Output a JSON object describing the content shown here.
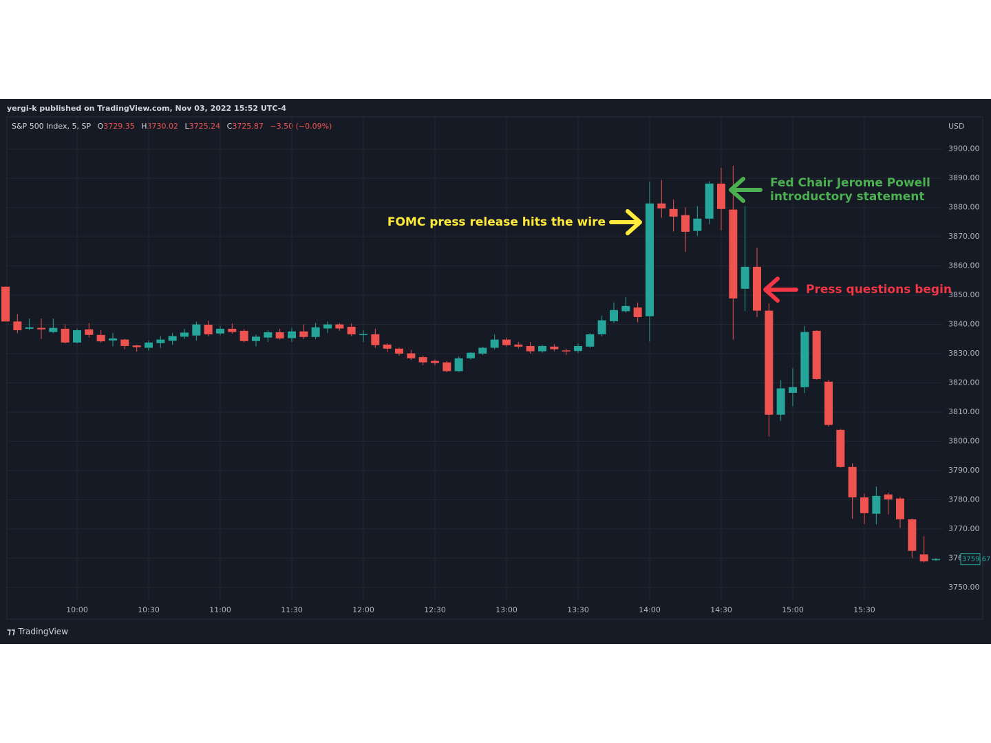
{
  "header": {
    "published": "yergi-k published on TradingView.com, Nov 03, 2022 15:52 UTC-4",
    "symbol": "S&P 500 Index, 5, SP",
    "ohlc": [
      {
        "label": "O",
        "value": "3729.35"
      },
      {
        "label": "H",
        "value": "3730.02"
      },
      {
        "label": "L",
        "value": "3725.24"
      },
      {
        "label": "C",
        "value": "3725.87"
      }
    ],
    "change": "−3.50 (−0.09%)",
    "currency": "USD",
    "brand": "TradingView"
  },
  "chart_data": {
    "type": "candlestick",
    "categories": [
      null,
      null,
      null,
      null,
      null,
      null,
      "10:00",
      null,
      null,
      null,
      null,
      null,
      "10:30",
      null,
      null,
      null,
      null,
      null,
      "11:00",
      null,
      null,
      null,
      null,
      null,
      "11:30",
      null,
      null,
      null,
      null,
      null,
      "12:00",
      null,
      null,
      null,
      null,
      null,
      "12:30",
      null,
      null,
      null,
      null,
      null,
      "13:00",
      null,
      null,
      null,
      null,
      null,
      "13:30",
      null,
      null,
      null,
      null,
      null,
      "14:00",
      null,
      null,
      null,
      null,
      null,
      "14:30",
      null,
      null,
      null,
      null,
      null,
      "15:00",
      null,
      null,
      null,
      null,
      null,
      "15:30",
      null,
      null,
      null,
      null,
      null,
      null
    ],
    "series": [
      {
        "name": "S&P 500 Index",
        "up_color": "#26a69a",
        "down_color": "#ef5350",
        "open": [
          3852.9,
          3841,
          3838.5,
          3838.8,
          3837.4,
          3838.5,
          3833.8,
          3838.3,
          3836.4,
          3834.5,
          3834.8,
          3832.8,
          3832,
          3833.6,
          3834.4,
          3835.8,
          3836.2,
          3839.9,
          3836.9,
          3838.5,
          3837.8,
          3834.3,
          3835.5,
          3837.3,
          3835.3,
          3837.6,
          3835.7,
          3838.6,
          3840,
          3839.2,
          3836.4,
          3836.6,
          3833.1,
          3831.7,
          3830.1,
          3828.8,
          3827.5,
          3827,
          3824,
          3828.4,
          3830,
          3832,
          3834.8,
          3833.1,
          3832.6,
          3830.8,
          3832.4,
          3831.1,
          3830.9,
          3832.4,
          3836.6,
          3841.1,
          3844.5,
          3845.8,
          3842.8,
          3881.4,
          3879.5,
          3877.4,
          3872,
          3876.2,
          3888.2,
          3879.3,
          3852.2,
          3859.7,
          3844.7,
          3809.1,
          3816.6,
          3818.5,
          3837.8,
          3820.4,
          3803.9,
          3791.2,
          3780.8,
          3775.2,
          3781.8,
          3780.4,
          3773.3,
          3761.3,
          3759.3
        ],
        "high": [
          3853,
          3843.5,
          3842,
          3842,
          3842,
          3840,
          3838.5,
          3840.5,
          3838,
          3837,
          3835,
          3833,
          3834.5,
          3836,
          3837,
          3838.5,
          3841,
          3841.3,
          3839.5,
          3840.3,
          3838.5,
          3836.5,
          3838,
          3838.5,
          3838.8,
          3840,
          3840.5,
          3841,
          3840.5,
          3840.3,
          3838,
          3838.5,
          3833.5,
          3832,
          3831.3,
          3829.3,
          3828,
          3827.5,
          3829,
          3830.5,
          3832.3,
          3836.5,
          3835.5,
          3834,
          3834,
          3833,
          3833.2,
          3831.7,
          3833.5,
          3837,
          3843,
          3847.5,
          3849.3,
          3847.5,
          3888.8,
          3889.4,
          3882.8,
          3880,
          3880.5,
          3889,
          3893.6,
          3894.3,
          3880.5,
          3866.3,
          3847.2,
          3820.9,
          3825,
          3839.5,
          3838,
          3821,
          3804.2,
          3792.5,
          3782,
          3784.5,
          3782.5,
          3781,
          3773.5,
          3767.5,
          3760
        ],
        "low": [
          3841,
          3837,
          3838,
          3835,
          3837,
          3833.5,
          3833.5,
          3835.5,
          3833.8,
          3832.5,
          3831.5,
          3830.7,
          3831,
          3832,
          3833,
          3835,
          3834.5,
          3836,
          3836.3,
          3836.8,
          3833.8,
          3832.5,
          3834,
          3834.8,
          3834,
          3835,
          3835,
          3837,
          3837.8,
          3836,
          3834,
          3832,
          3830.5,
          3829.3,
          3827.8,
          3826,
          3826,
          3823.6,
          3823.8,
          3828,
          3829.5,
          3831.5,
          3832.5,
          3831.8,
          3830,
          3830.3,
          3830.8,
          3829.5,
          3830.2,
          3832,
          3836,
          3840.5,
          3844,
          3840.7,
          3834.1,
          3876.5,
          3871.8,
          3864.8,
          3870.3,
          3874.3,
          3872.2,
          3834.8,
          3844.5,
          3842.5,
          3801.6,
          3807,
          3812,
          3816.5,
          3821,
          3805,
          3791,
          3773.5,
          3771.7,
          3771.6,
          3775,
          3770.3,
          3760,
          3758.5,
          3759
        ],
        "close": [
          3841,
          3838,
          3839,
          3838.3,
          3838.8,
          3833.8,
          3838,
          3836.4,
          3834.2,
          3835.2,
          3832.6,
          3832.2,
          3833.8,
          3834.8,
          3836,
          3837.2,
          3840,
          3836.6,
          3838.5,
          3837.4,
          3834.3,
          3835.8,
          3837.3,
          3835.2,
          3837.6,
          3835.7,
          3839,
          3840,
          3838.6,
          3836.6,
          3836.7,
          3832.9,
          3831.7,
          3830,
          3828.4,
          3827,
          3826.8,
          3824,
          3828.4,
          3830.3,
          3832,
          3834.8,
          3832.9,
          3832.4,
          3830.8,
          3832.6,
          3831.5,
          3830.9,
          3832.6,
          3836.6,
          3841.4,
          3844.9,
          3846.3,
          3842.5,
          3881.4,
          3879.7,
          3876.9,
          3871.7,
          3876.2,
          3888.2,
          3879.5,
          3848.9,
          3859.7,
          3844.7,
          3809.1,
          3818.1,
          3818.5,
          3837.4,
          3821.3,
          3805.6,
          3791.2,
          3780.8,
          3775.4,
          3781.3,
          3780.1,
          3773.3,
          3762.5,
          3758.9,
          3759.67
        ]
      }
    ],
    "ylim": [
      3745,
      3911
    ],
    "yticks": [
      {
        "value": 3750,
        "label": "3750.00"
      },
      {
        "value": 3760,
        "label": "3760.00"
      },
      {
        "value": 3770,
        "label": "3770.00"
      },
      {
        "value": 3780,
        "label": "3780.00"
      },
      {
        "value": 3790,
        "label": "3790.00"
      },
      {
        "value": 3800,
        "label": "3800.00"
      },
      {
        "value": 3810,
        "label": "3810.00"
      },
      {
        "value": 3820,
        "label": "3820.00"
      },
      {
        "value": 3830,
        "label": "3830.00"
      },
      {
        "value": 3840,
        "label": "3840.00"
      },
      {
        "value": 3850,
        "label": "3850.00"
      },
      {
        "value": 3860,
        "label": "3860.00"
      },
      {
        "value": 3870,
        "label": "3870.00"
      },
      {
        "value": 3880,
        "label": "3880.00"
      },
      {
        "value": 3890,
        "label": "3890.00"
      },
      {
        "value": 3900,
        "label": "3900.00"
      }
    ],
    "grid": true,
    "annotations": [
      {
        "text": [
          "FOMC press release hits the wire"
        ],
        "color": "#ffeb3b"
      },
      {
        "text": [
          "Fed Chair Jerome Powell",
          "introductory statement"
        ],
        "color": "#4caf50"
      },
      {
        "text": [
          "Press questions begin"
        ],
        "color": "#f23645"
      }
    ]
  }
}
